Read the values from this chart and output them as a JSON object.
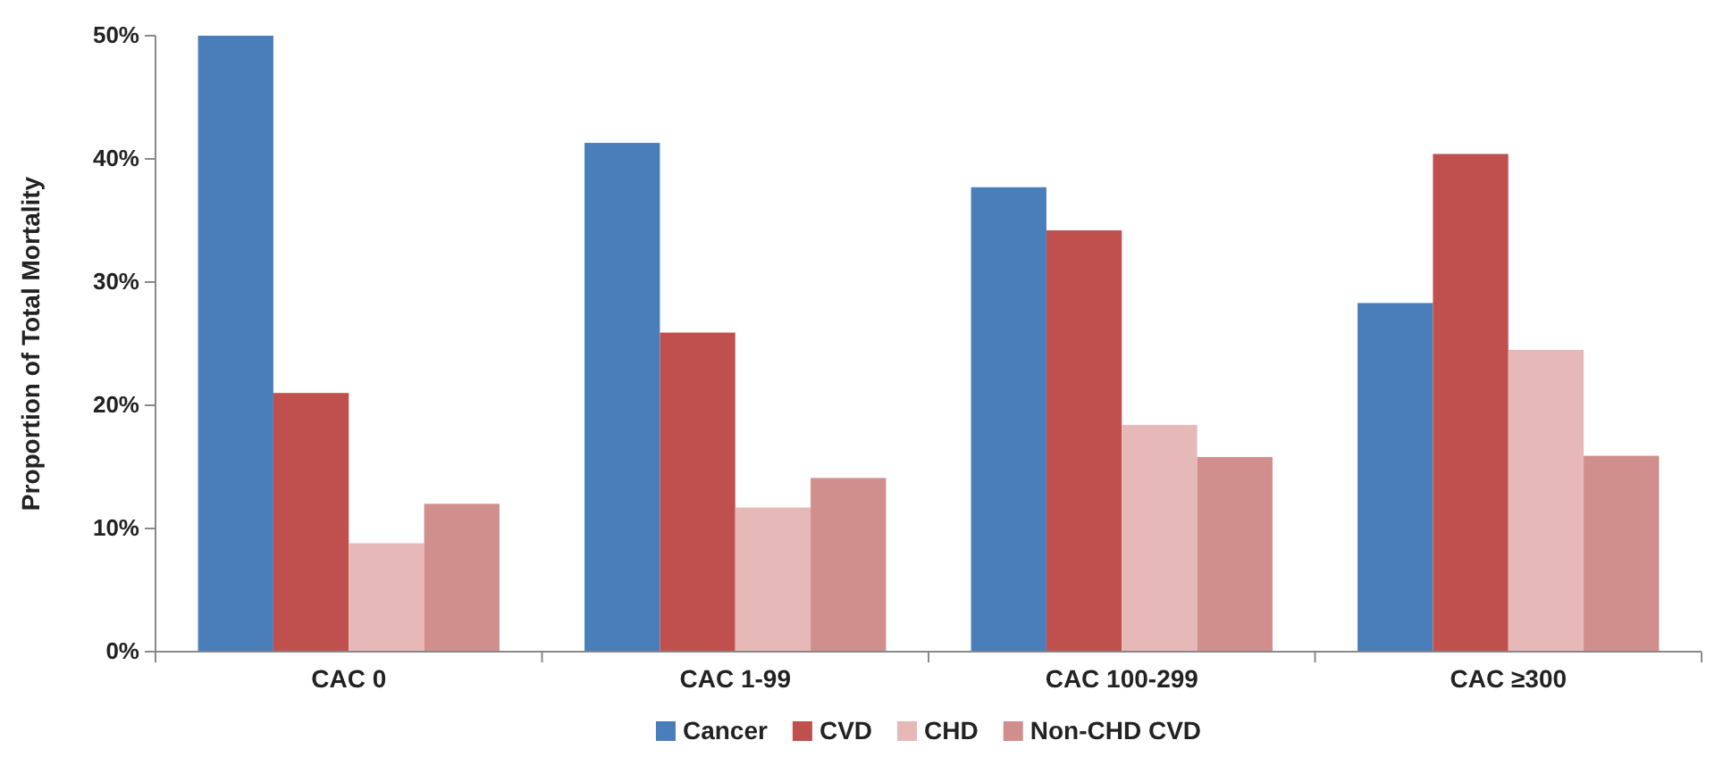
{
  "chart_data": {
    "type": "bar",
    "ylabel": "Proportion of Total Mortality",
    "categories": [
      "CAC 0",
      "CAC 1-99",
      "CAC 100-299",
      "CAC ≥300"
    ],
    "series": [
      {
        "name": "Cancer",
        "color": "#4a7ebb",
        "values": [
          50,
          41.3,
          37.7,
          28.3
        ]
      },
      {
        "name": "CVD",
        "color": "#c0504d",
        "values": [
          21,
          25.9,
          34.2,
          40.4
        ]
      },
      {
        "name": "CHD",
        "color": "#e6b9b8",
        "values": [
          8.8,
          11.7,
          18.4,
          24.5
        ]
      },
      {
        "name": "Non-CHD CVD",
        "color": "#d08e8c",
        "values": [
          12,
          14.1,
          15.8,
          15.9
        ]
      }
    ],
    "ylim": [
      0,
      50
    ],
    "yticks": [
      {
        "value": 0,
        "label": "0%"
      },
      {
        "value": 10,
        "label": "10%"
      },
      {
        "value": 20,
        "label": "20%"
      },
      {
        "value": 30,
        "label": "30%"
      },
      {
        "value": 40,
        "label": "40%"
      },
      {
        "value": 50,
        "label": "50%"
      }
    ],
    "grid": false,
    "legend": "bottom"
  }
}
